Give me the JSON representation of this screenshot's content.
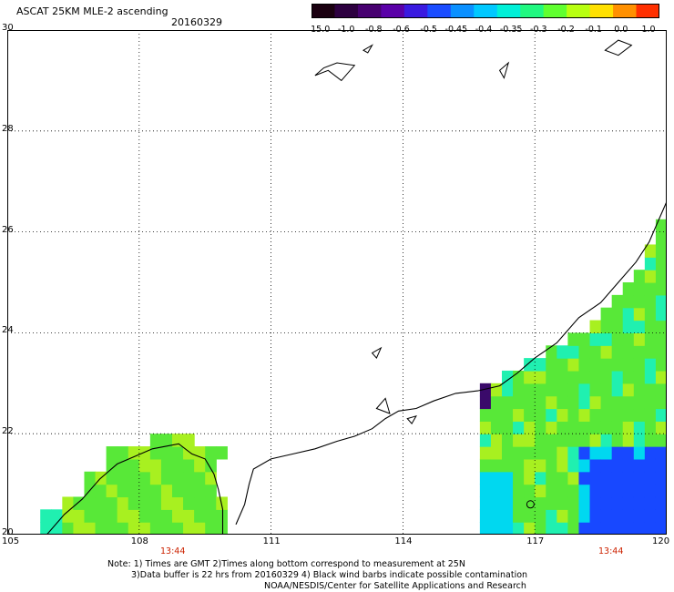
{
  "header": {
    "title": "ASCAT 25KM MLE-2 ascending",
    "date": "20160329"
  },
  "colorbar": {
    "labels": [
      "-15.0",
      "-1.0",
      "-0.8",
      "-0.6",
      "-0.5",
      "-0.45",
      "-0.4",
      "-0.35",
      "-0.3",
      "-0.2",
      "-0.1",
      "0.0",
      "1.0"
    ],
    "colors": [
      "#1a0010",
      "#2d0040",
      "#470070",
      "#5a00a8",
      "#3a1ae0",
      "#1a4cff",
      "#0a90ff",
      "#00c8ff",
      "#00f0d8",
      "#20f880",
      "#60ff30",
      "#b8ff10",
      "#ffe000",
      "#ff9000",
      "#ff3000"
    ]
  },
  "map": {
    "lon_labels": [
      "105",
      "108",
      "111",
      "114",
      "117",
      "120"
    ],
    "lat_labels": [
      "20",
      "22",
      "24",
      "26",
      "28",
      "30"
    ],
    "lon_range": [
      105,
      120
    ],
    "lat_range": [
      20,
      30
    ],
    "pass_times": [
      "13:44",
      "13:44"
    ]
  },
  "notes": {
    "line1": "Note: 1) Times are GMT 2)Times along bottom correspond to measurement at 25N",
    "line2": "3)Data buffer is 22 hrs from 20160329 4) Black wind barbs indicate possible contamination",
    "line3": "NOAA/NESDIS/Center for Satellite Applications and Research"
  },
  "style": {
    "green": "#58e838",
    "yellow_green": "#a8f020",
    "cyan": "#00d8f0",
    "aqua": "#20f0b0",
    "blue": "#1848ff",
    "dark_purple": "#3a0a6a"
  }
}
